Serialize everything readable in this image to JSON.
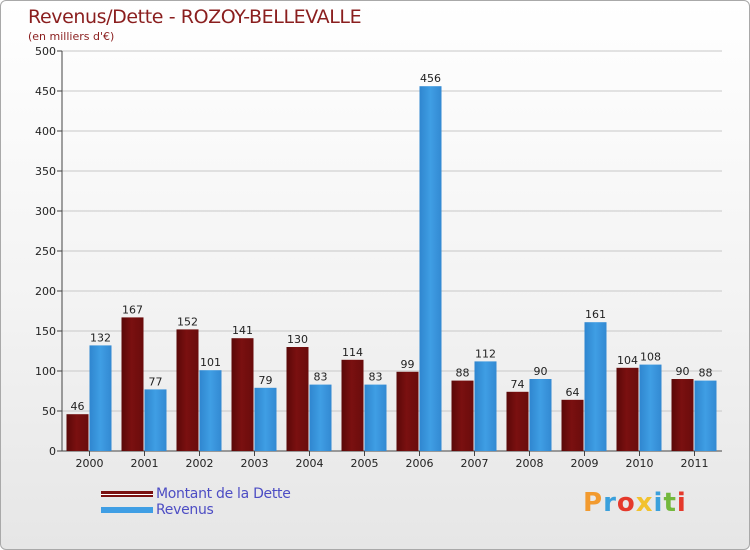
{
  "header": {
    "title": "Revenus/Dette - ROZOY-BELLEVALLE",
    "subtitle": "(en milliers d'€)"
  },
  "legend": {
    "dette_label": "Montant de la Dette",
    "revenus_label": "Revenus"
  },
  "logo": {
    "letters": [
      "P",
      "r",
      "o",
      "x",
      "i",
      "t",
      "i"
    ],
    "colors": [
      "#f29a2e",
      "#3aa0dc",
      "#e5392b",
      "#f2c22e",
      "#3aa0dc",
      "#73b83c",
      "#e5392b"
    ]
  },
  "colors": {
    "dette": "#7a1010",
    "revenus": "#3f9ee4"
  },
  "chart_data": {
    "type": "bar",
    "title": "Revenus/Dette - ROZOY-BELLEVALLE",
    "ylabel": "(en milliers d'€)",
    "xlabel": "",
    "ylim": [
      0,
      500
    ],
    "ystep": 50,
    "grid": true,
    "legend_position": "bottom-left",
    "categories": [
      "2000",
      "2001",
      "2002",
      "2003",
      "2004",
      "2005",
      "2006",
      "2007",
      "2008",
      "2009",
      "2010",
      "2011"
    ],
    "series": [
      {
        "name": "Montant de la Dette",
        "values": [
          46,
          167,
          152,
          141,
          130,
          114,
          99,
          88,
          74,
          64,
          104,
          90
        ]
      },
      {
        "name": "Revenus",
        "values": [
          132,
          77,
          101,
          79,
          83,
          83,
          456,
          112,
          90,
          161,
          108,
          88
        ]
      }
    ]
  }
}
